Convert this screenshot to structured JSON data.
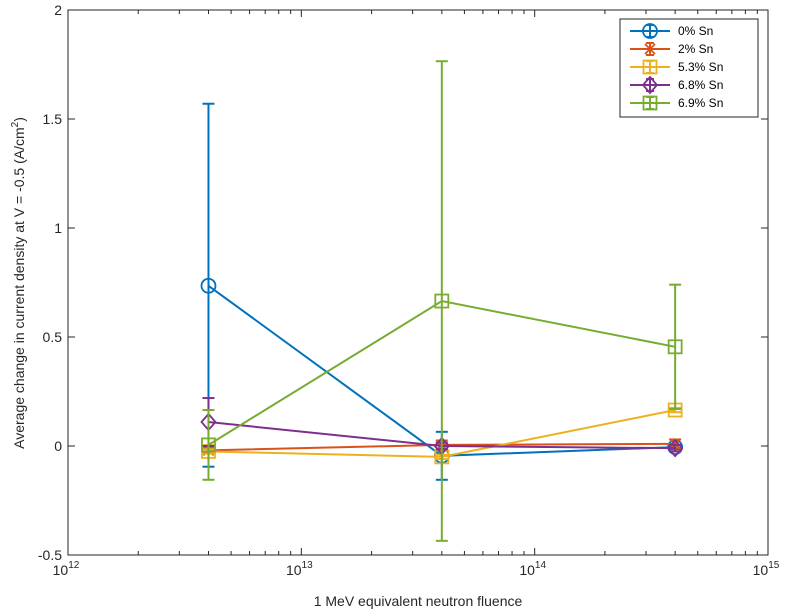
{
  "chart_data": {
    "type": "line",
    "xscale": "log",
    "xlabel": "1 MeV equivalent neutron fluence",
    "ylabel_main": "Average change in current density at V = -0.5 (A/cm",
    "ylabel_sup": "2",
    "ylabel_close": ")",
    "xlim": [
      1000000000000.0,
      1000000000000000.0
    ],
    "ylim": [
      -0.5,
      2
    ],
    "xticks": [
      1000000000000.0,
      10000000000000.0,
      100000000000000.0,
      1000000000000000.0
    ],
    "xtick_labels": [
      {
        "base": "10",
        "exp": "12"
      },
      {
        "base": "10",
        "exp": "13"
      },
      {
        "base": "10",
        "exp": "14"
      },
      {
        "base": "10",
        "exp": "15"
      }
    ],
    "yticks": [
      -0.5,
      0,
      0.5,
      1,
      1.5,
      2
    ],
    "ytick_labels": [
      "-0.5",
      "0",
      "0.5",
      "1",
      "1.5",
      "2"
    ],
    "grid": false,
    "legend_position": "top-right",
    "x": [
      4000000000000.0,
      40000000000000.0,
      400000000000000.0
    ],
    "series": [
      {
        "name": "0% Sn",
        "color": "#0072BD",
        "marker": "circle",
        "values": [
          0.735,
          -0.045,
          -0.005
        ],
        "error": [
          [
            0.83,
            0.835
          ],
          [
            0.11,
            0.11
          ],
          [
            0.01,
            0.01
          ]
        ]
      },
      {
        "name": "2% Sn",
        "color": "#D95319",
        "marker": "x",
        "values": [
          -0.02,
          0.005,
          0.01
        ],
        "error": [
          [
            0.01,
            0.01
          ],
          [
            0.02,
            0.02
          ],
          [
            0.02,
            0.02
          ]
        ]
      },
      {
        "name": "5.3% Sn",
        "color": "#EDB120",
        "marker": "square",
        "values": [
          -0.025,
          -0.05,
          0.165
        ],
        "error": [
          [
            0.01,
            0.01
          ],
          [
            0.01,
            0.01
          ],
          [
            0.01,
            0.01
          ]
        ]
      },
      {
        "name": "6.8% Sn",
        "color": "#7E2F8E",
        "marker": "diamond",
        "values": [
          0.11,
          0.0,
          -0.01
        ],
        "error": [
          [
            0.11,
            0.11
          ],
          [
            0.015,
            0.015
          ],
          [
            0.015,
            0.015
          ]
        ]
      },
      {
        "name": "6.9% Sn",
        "color": "#77AC30",
        "marker": "square",
        "values": [
          0.005,
          0.665,
          0.455
        ],
        "error": [
          [
            0.16,
            0.16
          ],
          [
            1.1,
            1.1
          ],
          [
            0.285,
            0.285
          ]
        ]
      }
    ]
  }
}
